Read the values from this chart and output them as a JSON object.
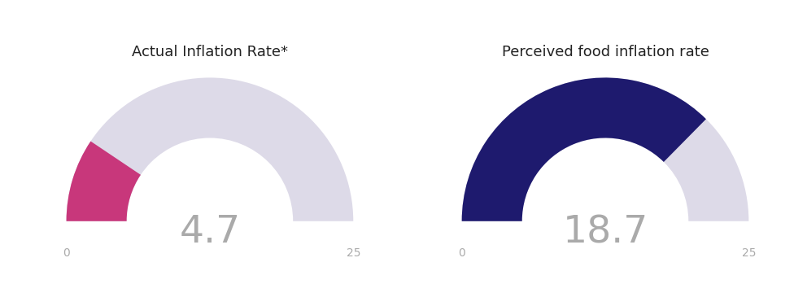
{
  "gauges": [
    {
      "title": "Actual Inflation Rate*",
      "value": 4.7,
      "max_value": 25,
      "min_label": "0",
      "max_label": "25",
      "value_color": "#C8377B",
      "background_color": "#DDDAE8",
      "center_text": "4.7",
      "text_color": "#AAAAAA"
    },
    {
      "title": "Perceived food inflation rate",
      "value": 18.7,
      "max_value": 25,
      "min_label": "0",
      "max_label": "25",
      "value_color": "#1E1A6E",
      "background_color": "#DDDAE8",
      "center_text": "18.7",
      "text_color": "#AAAAAA"
    }
  ],
  "background_color": "#FFFFFF",
  "title_fontsize": 13,
  "value_fontsize": 34,
  "label_fontsize": 10,
  "outer_r": 1.0,
  "inner_r": 0.58
}
